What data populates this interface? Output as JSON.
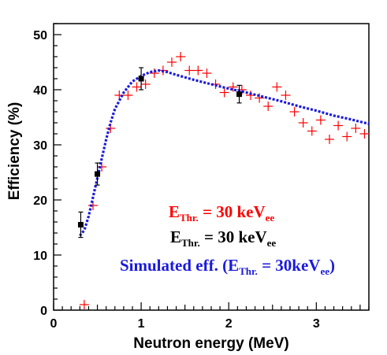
{
  "chart_data": {
    "type": "scatter",
    "xlabel": "Neutron energy (MeV)",
    "ylabel": "Efficiency (%)",
    "xlim": [
      0,
      3.6
    ],
    "ylim": [
      0,
      52
    ],
    "x_ticks": [
      "0",
      "1",
      "2",
      "3"
    ],
    "y_ticks": [
      "0",
      "10",
      "20",
      "30",
      "40",
      "50"
    ],
    "grid": false,
    "legend_placement": "bottom-right",
    "colors": {
      "red": "#ff0000",
      "black": "#000000",
      "blue": "#1a1adc"
    },
    "series": [
      {
        "legend_main": "E",
        "legend_sub": "Thr.",
        "legend_rest": " = 30 keV",
        "legend_tail": "ee",
        "color": "#ff0000",
        "marker": "cross",
        "points": [
          {
            "x": 0.35,
            "y": 1.0
          },
          {
            "x": 0.45,
            "y": 19.0
          },
          {
            "x": 0.55,
            "y": 26.0
          },
          {
            "x": 0.65,
            "y": 33.0
          },
          {
            "x": 0.75,
            "y": 39.0
          },
          {
            "x": 0.85,
            "y": 39.0
          },
          {
            "x": 0.95,
            "y": 40.5
          },
          {
            "x": 1.05,
            "y": 41.0
          },
          {
            "x": 1.15,
            "y": 43.0
          },
          {
            "x": 1.25,
            "y": 43.5
          },
          {
            "x": 1.35,
            "y": 45.0
          },
          {
            "x": 1.45,
            "y": 46.0
          },
          {
            "x": 1.55,
            "y": 43.5
          },
          {
            "x": 1.65,
            "y": 43.5
          },
          {
            "x": 1.75,
            "y": 43.0
          },
          {
            "x": 1.85,
            "y": 41.0
          },
          {
            "x": 1.95,
            "y": 39.5
          },
          {
            "x": 2.05,
            "y": 40.5
          },
          {
            "x": 2.15,
            "y": 40.0
          },
          {
            "x": 2.25,
            "y": 39.0
          },
          {
            "x": 2.35,
            "y": 38.5
          },
          {
            "x": 2.45,
            "y": 37.0
          },
          {
            "x": 2.55,
            "y": 40.5
          },
          {
            "x": 2.65,
            "y": 39.0
          },
          {
            "x": 2.75,
            "y": 36.0
          },
          {
            "x": 2.85,
            "y": 34.0
          },
          {
            "x": 2.95,
            "y": 32.5
          },
          {
            "x": 3.05,
            "y": 34.5
          },
          {
            "x": 3.15,
            "y": 31.0
          },
          {
            "x": 3.25,
            "y": 33.5
          },
          {
            "x": 3.35,
            "y": 31.5
          },
          {
            "x": 3.45,
            "y": 33.0
          },
          {
            "x": 3.55,
            "y": 32.0
          }
        ]
      },
      {
        "legend_main": "E",
        "legend_sub": "Thr.",
        "legend_rest": " = 30 keV",
        "legend_tail": "ee",
        "color": "#000000",
        "marker": "square-errorbar",
        "points": [
          {
            "x": 0.31,
            "y": 15.5,
            "err": 2.3
          },
          {
            "x": 0.5,
            "y": 24.7,
            "err": 2.0
          },
          {
            "x": 1.0,
            "y": 42.0,
            "err": 2.0
          },
          {
            "x": 2.12,
            "y": 39.2,
            "err": 1.6
          }
        ]
      },
      {
        "legend_main": "Simulated eff. (E",
        "legend_sub": "Thr.",
        "legend_rest": " = 30keV",
        "legend_tail": "ee",
        "legend_close": ")",
        "color": "#1a1adc",
        "marker": "dotted-line",
        "x": [
          0.3,
          0.35,
          0.4,
          0.45,
          0.5,
          0.55,
          0.6,
          0.65,
          0.7,
          0.8,
          0.9,
          1.0,
          1.1,
          1.2,
          1.3,
          1.4,
          1.6,
          1.8,
          2.0,
          2.2,
          2.4,
          2.6,
          2.8,
          3.0,
          3.2,
          3.4,
          3.6
        ],
        "y": [
          13.5,
          14.5,
          17.0,
          20.5,
          24.0,
          27.5,
          31.0,
          34.0,
          36.5,
          39.5,
          41.5,
          42.5,
          43.2,
          43.5,
          43.2,
          42.7,
          41.8,
          41.0,
          40.2,
          39.5,
          38.7,
          37.9,
          37.0,
          36.2,
          35.3,
          34.6,
          33.8
        ]
      }
    ]
  }
}
